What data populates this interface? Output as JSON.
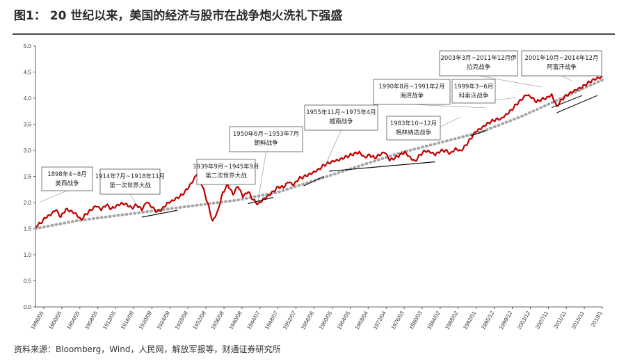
{
  "title": "图1： 20 世纪以来，美国的经济与股市在战争炮火洗礼下强盛",
  "source": "资料来源：Bloomberg，Wind，人民网，解放军报等，财通证券研究所",
  "chart_data": {
    "type": "line",
    "y_ticks": [
      "0.0",
      "0.5",
      "1.0",
      "1.5",
      "2.0",
      "2.5",
      "3.0",
      "3.5",
      "4.0",
      "4.5",
      "5.0"
    ],
    "ylim": [
      0,
      5
    ],
    "x_ticks": [
      "1896/05",
      "1900/05",
      "1904/05",
      "1908/05",
      "1912/05",
      "1916/09",
      "1920/09",
      "1924/09",
      "1928/08",
      "1932/08",
      "1936/08",
      "1940/08",
      "1944/07",
      "1948/07",
      "1952/07",
      "1956/06",
      "1960/05",
      "1964/05",
      "1968/04",
      "1972/04",
      "1976/03",
      "1980/03",
      "1984/02",
      "1988/02",
      "1992/01",
      "1995/12",
      "1999/12",
      "2003/12",
      "2007/11",
      "2011/11",
      "2015/11",
      "2019/1"
    ],
    "series": [
      {
        "color": "#c00000",
        "points": [
          [
            0,
            1.55
          ],
          [
            1,
            1.6
          ],
          [
            2,
            1.7
          ],
          [
            3,
            1.75
          ],
          [
            4,
            1.85
          ],
          [
            5,
            1.72
          ],
          [
            6,
            1.88
          ],
          [
            7,
            1.85
          ],
          [
            8,
            1.8
          ],
          [
            9,
            1.68
          ],
          [
            10,
            1.78
          ],
          [
            11,
            1.85
          ],
          [
            12,
            1.92
          ],
          [
            13,
            1.85
          ],
          [
            14,
            1.95
          ],
          [
            15,
            1.88
          ],
          [
            16,
            1.95
          ],
          [
            17,
            2.0
          ],
          [
            18,
            1.98
          ],
          [
            19,
            1.9
          ],
          [
            20,
            1.95
          ],
          [
            21,
            1.85
          ],
          [
            22,
            2.0
          ],
          [
            23,
            1.9
          ],
          [
            24,
            1.82
          ],
          [
            25,
            1.88
          ],
          [
            26,
            2.0
          ],
          [
            27,
            2.05
          ],
          [
            28,
            2.1
          ],
          [
            29,
            2.15
          ],
          [
            30,
            2.25
          ],
          [
            31,
            2.38
          ],
          [
            32,
            2.55
          ],
          [
            33,
            2.3
          ],
          [
            34,
            2.0
          ],
          [
            35,
            1.65
          ],
          [
            36,
            1.85
          ],
          [
            37,
            2.2
          ],
          [
            38,
            2.35
          ],
          [
            39,
            2.15
          ],
          [
            40,
            2.3
          ],
          [
            41,
            2.1
          ],
          [
            42,
            2.2
          ],
          [
            43,
            2.05
          ],
          [
            44,
            1.98
          ],
          [
            45,
            2.08
          ],
          [
            46,
            2.15
          ],
          [
            47,
            2.22
          ],
          [
            48,
            2.3
          ],
          [
            49,
            2.28
          ],
          [
            50,
            2.38
          ],
          [
            51,
            2.32
          ],
          [
            52,
            2.45
          ],
          [
            53,
            2.5
          ],
          [
            54,
            2.55
          ],
          [
            55,
            2.6
          ],
          [
            56,
            2.65
          ],
          [
            57,
            2.72
          ],
          [
            58,
            2.75
          ],
          [
            59,
            2.78
          ],
          [
            60,
            2.8
          ],
          [
            61,
            2.85
          ],
          [
            62,
            2.9
          ],
          [
            63,
            2.95
          ],
          [
            64,
            2.98
          ],
          [
            65,
            2.88
          ],
          [
            66,
            2.92
          ],
          [
            67,
            2.85
          ],
          [
            68,
            2.9
          ],
          [
            69,
            2.95
          ],
          [
            70,
            2.8
          ],
          [
            71,
            2.85
          ],
          [
            72,
            2.92
          ],
          [
            73,
            2.98
          ],
          [
            74,
            2.88
          ],
          [
            75,
            2.8
          ],
          [
            76,
            2.92
          ],
          [
            77,
            2.98
          ],
          [
            78,
            2.95
          ],
          [
            79,
            2.9
          ],
          [
            80,
            2.98
          ],
          [
            81,
            3.0
          ],
          [
            82,
            2.95
          ],
          [
            83,
            3.05
          ],
          [
            84,
            3.0
          ],
          [
            85,
            3.1
          ],
          [
            86,
            3.22
          ],
          [
            87,
            3.35
          ],
          [
            88,
            3.4
          ],
          [
            89,
            3.48
          ],
          [
            90,
            3.55
          ],
          [
            91,
            3.6
          ],
          [
            92,
            3.62
          ],
          [
            93,
            3.7
          ],
          [
            94,
            3.78
          ],
          [
            95,
            3.88
          ],
          [
            96,
            3.96
          ],
          [
            97,
            4.05
          ],
          [
            98,
            4.0
          ],
          [
            99,
            3.92
          ],
          [
            100,
            3.98
          ],
          [
            101,
            4.02
          ],
          [
            102,
            4.08
          ],
          [
            103,
            3.85
          ],
          [
            104,
            3.98
          ],
          [
            105,
            4.05
          ],
          [
            106,
            4.1
          ],
          [
            107,
            4.15
          ],
          [
            108,
            4.2
          ],
          [
            109,
            4.28
          ],
          [
            110,
            4.35
          ],
          [
            111,
            4.4
          ],
          [
            112,
            4.42
          ]
        ]
      },
      {
        "color": "#a6a6a6",
        "points": [
          [
            0,
            1.5
          ],
          [
            8,
            1.65
          ],
          [
            16,
            1.75
          ],
          [
            24,
            1.85
          ],
          [
            32,
            1.95
          ],
          [
            40,
            2.05
          ],
          [
            48,
            2.2
          ],
          [
            56,
            2.45
          ],
          [
            64,
            2.7
          ],
          [
            72,
            2.95
          ],
          [
            80,
            3.15
          ],
          [
            88,
            3.35
          ],
          [
            96,
            3.65
          ],
          [
            104,
            4.0
          ],
          [
            112,
            4.35
          ]
        ]
      }
    ],
    "annotations": [
      {
        "lines": [
          "1898年4~8月",
          "美西战争"
        ]
      },
      {
        "lines": [
          "1914年7月~1918年11月",
          "第一次世界大战"
        ]
      },
      {
        "lines": [
          "1939年9月~1945年9月",
          "第二次世界大战"
        ]
      },
      {
        "lines": [
          "1950年6月~1953年7月",
          "朝鲜战争"
        ]
      },
      {
        "lines": [
          "1955年11月~1975年4月",
          "越南战争"
        ]
      },
      {
        "lines": [
          "1983年10~12月",
          "格林纳达战争"
        ]
      },
      {
        "lines": [
          "1990年8月~1991年2月",
          "海湾战争"
        ]
      },
      {
        "lines": [
          "1999年3~6月",
          "科索沃战争"
        ]
      },
      {
        "lines": [
          "2003年3月~2011年12月伊",
          "拉克战争"
        ]
      },
      {
        "lines": [
          "2001年10月~2014年12月",
          "阿富汗战争"
        ]
      }
    ]
  }
}
